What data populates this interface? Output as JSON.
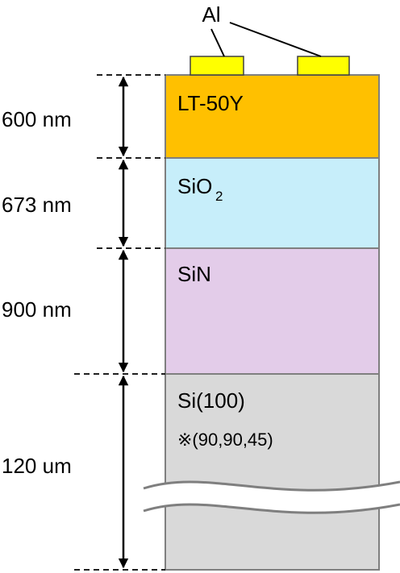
{
  "annotation": "Al",
  "layers": [
    {
      "label": "LT-50Y",
      "thickness": "600 nm"
    },
    {
      "label": "SiO",
      "label_subscript": "2",
      "thickness": "673 nm"
    },
    {
      "label": "SiN",
      "thickness": "900 nm"
    },
    {
      "label": "Si(100)",
      "note": "※(90,90,45)",
      "thickness": "120 um"
    }
  ]
}
